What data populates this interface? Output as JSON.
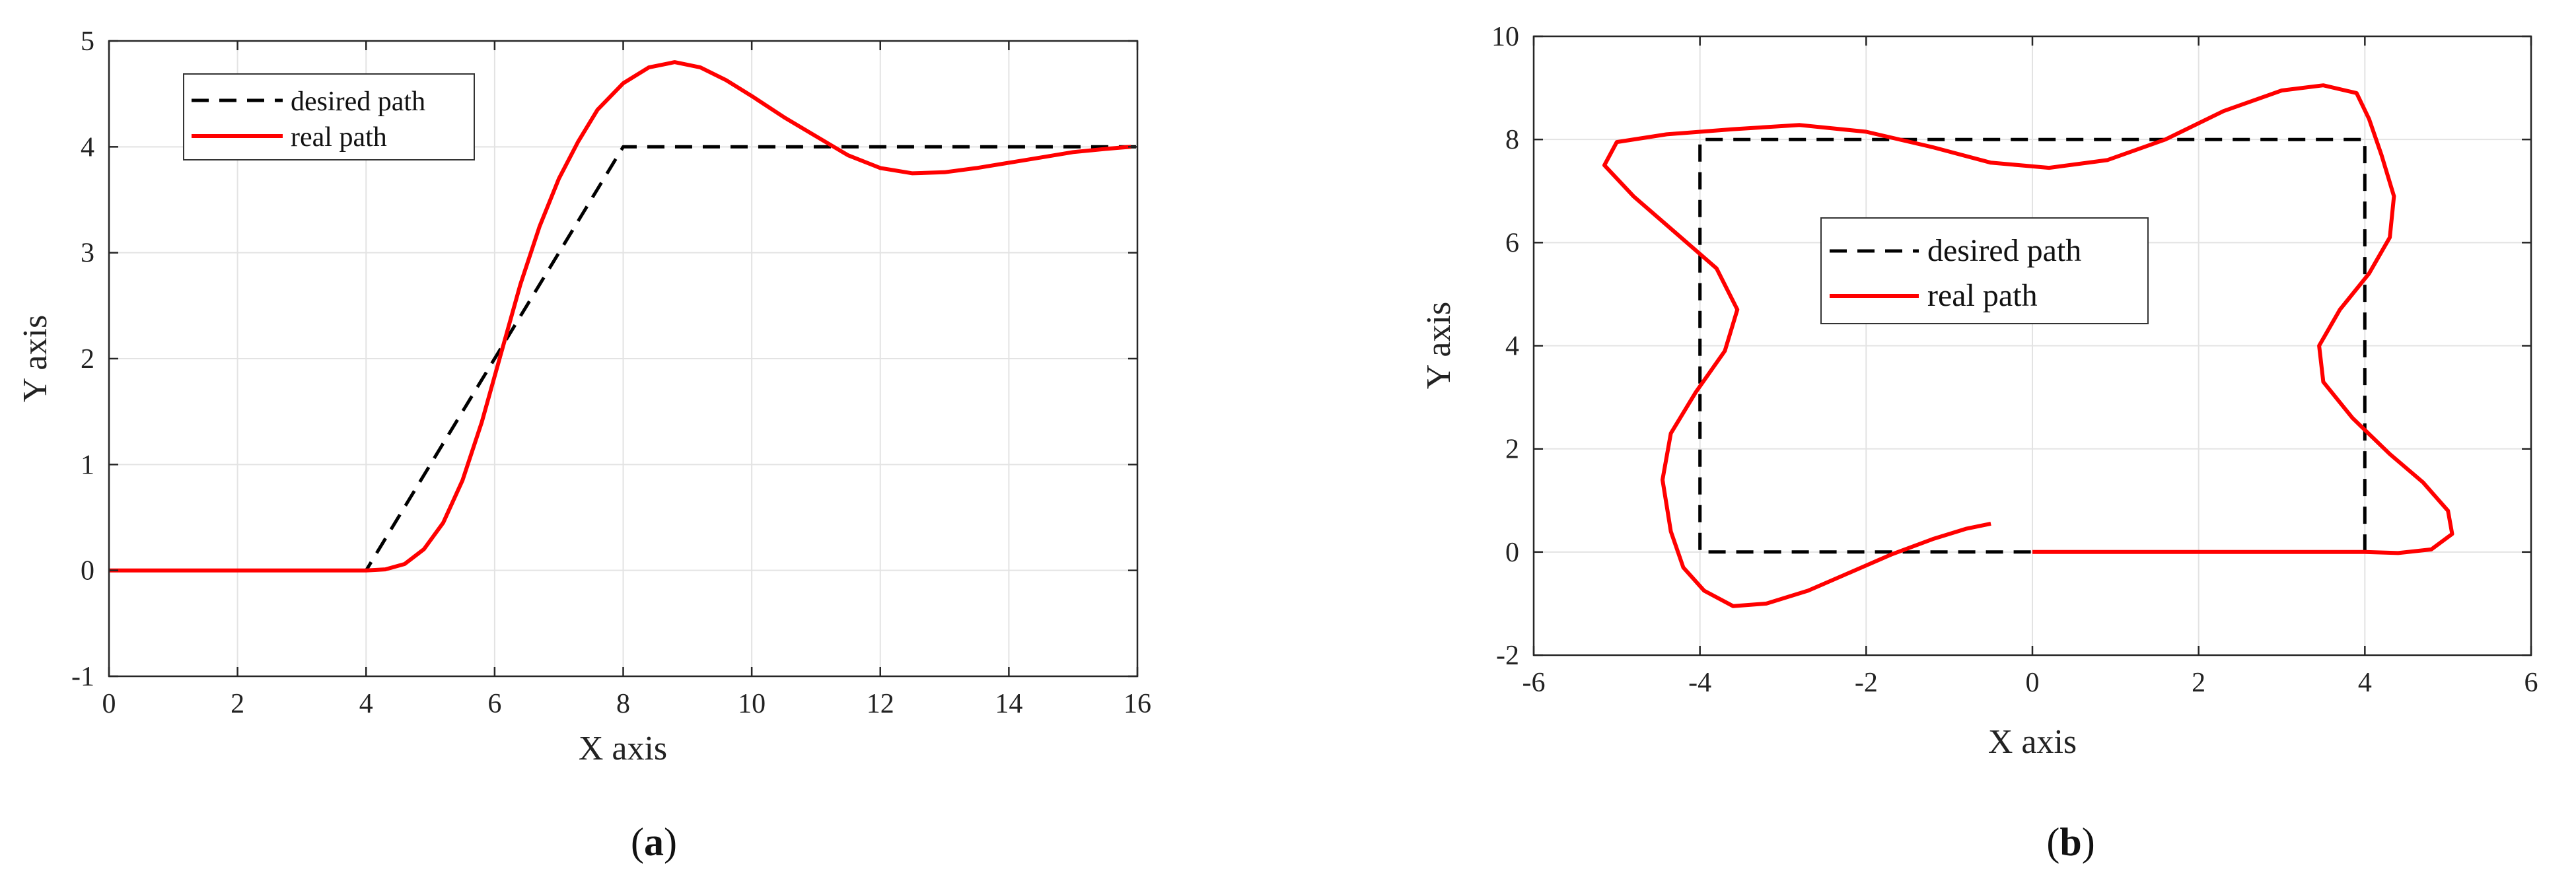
{
  "chart_data": [
    {
      "type": "line",
      "caption": "a",
      "xlabel": "X axis",
      "ylabel": "Y axis",
      "xlim": [
        0,
        16
      ],
      "ylim": [
        -1,
        5
      ],
      "xticks": [
        0,
        2,
        4,
        6,
        8,
        10,
        12,
        14,
        16
      ],
      "yticks": [
        -1,
        0,
        1,
        2,
        3,
        4,
        5
      ],
      "grid": true,
      "legend": "top-left",
      "series": [
        {
          "name": "desired path",
          "style": "dashed",
          "color": "#000000",
          "points": [
            [
              0,
              0
            ],
            [
              4,
              0
            ],
            [
              8,
              4
            ],
            [
              16,
              4
            ]
          ]
        },
        {
          "name": "real path",
          "style": "solid",
          "color": "#ff0000",
          "points": [
            [
              0,
              0
            ],
            [
              2,
              0
            ],
            [
              4,
              0
            ],
            [
              4.3,
              0.01
            ],
            [
              4.6,
              0.06
            ],
            [
              4.9,
              0.2
            ],
            [
              5.2,
              0.45
            ],
            [
              5.5,
              0.85
            ],
            [
              5.8,
              1.4
            ],
            [
              6.1,
              2.05
            ],
            [
              6.4,
              2.7
            ],
            [
              6.7,
              3.25
            ],
            [
              7.0,
              3.7
            ],
            [
              7.3,
              4.05
            ],
            [
              7.6,
              4.35
            ],
            [
              8.0,
              4.6
            ],
            [
              8.4,
              4.75
            ],
            [
              8.8,
              4.8
            ],
            [
              9.2,
              4.75
            ],
            [
              9.6,
              4.63
            ],
            [
              10.0,
              4.48
            ],
            [
              10.5,
              4.28
            ],
            [
              11.0,
              4.1
            ],
            [
              11.5,
              3.92
            ],
            [
              12.0,
              3.8
            ],
            [
              12.5,
              3.75
            ],
            [
              13.0,
              3.76
            ],
            [
              13.5,
              3.8
            ],
            [
              14.0,
              3.85
            ],
            [
              14.5,
              3.9
            ],
            [
              15.0,
              3.95
            ],
            [
              15.5,
              3.98
            ],
            [
              15.9,
              4.0
            ]
          ]
        }
      ]
    },
    {
      "type": "line",
      "caption": "b",
      "xlabel": "X axis",
      "ylabel": "Y axis",
      "xlim": [
        -6,
        6
      ],
      "ylim": [
        -2,
        10
      ],
      "xticks": [
        -6,
        -4,
        -2,
        0,
        2,
        4,
        6
      ],
      "yticks": [
        -2,
        0,
        2,
        4,
        6,
        8,
        10
      ],
      "grid": true,
      "legend": "center",
      "series": [
        {
          "name": "desired path",
          "style": "dashed",
          "color": "#000000",
          "points": [
            [
              0,
              0
            ],
            [
              4,
              0
            ],
            [
              4,
              8
            ],
            [
              -4,
              8
            ],
            [
              -4,
              0
            ],
            [
              0,
              0
            ]
          ]
        },
        {
          "name": "real path",
          "style": "solid",
          "color": "#ff0000",
          "points": [
            [
              0,
              0
            ],
            [
              1,
              0
            ],
            [
              2,
              0
            ],
            [
              3,
              0
            ],
            [
              3.6,
              0
            ],
            [
              4.0,
              0
            ],
            [
              4.4,
              -0.02
            ],
            [
              4.8,
              0.05
            ],
            [
              5.05,
              0.35
            ],
            [
              5.0,
              0.8
            ],
            [
              4.7,
              1.35
            ],
            [
              4.3,
              1.9
            ],
            [
              3.85,
              2.6
            ],
            [
              3.5,
              3.3
            ],
            [
              3.45,
              4.0
            ],
            [
              3.7,
              4.7
            ],
            [
              4.05,
              5.4
            ],
            [
              4.3,
              6.1
            ],
            [
              4.35,
              6.9
            ],
            [
              4.2,
              7.7
            ],
            [
              4.05,
              8.4
            ],
            [
              3.9,
              8.9
            ],
            [
              3.5,
              9.05
            ],
            [
              3.0,
              8.95
            ],
            [
              2.3,
              8.55
            ],
            [
              1.6,
              8.0
            ],
            [
              0.9,
              7.6
            ],
            [
              0.2,
              7.45
            ],
            [
              -0.5,
              7.55
            ],
            [
              -1.2,
              7.85
            ],
            [
              -2.0,
              8.15
            ],
            [
              -2.8,
              8.28
            ],
            [
              -3.6,
              8.2
            ],
            [
              -4.4,
              8.1
            ],
            [
              -5.0,
              7.95
            ],
            [
              -5.15,
              7.5
            ],
            [
              -4.8,
              6.9
            ],
            [
              -4.3,
              6.2
            ],
            [
              -3.8,
              5.5
            ],
            [
              -3.55,
              4.7
            ],
            [
              -3.7,
              3.9
            ],
            [
              -4.05,
              3.1
            ],
            [
              -4.35,
              2.3
            ],
            [
              -4.45,
              1.4
            ],
            [
              -4.35,
              0.4
            ],
            [
              -4.2,
              -0.3
            ],
            [
              -3.95,
              -0.75
            ],
            [
              -3.6,
              -1.05
            ],
            [
              -3.2,
              -1.0
            ],
            [
              -2.7,
              -0.75
            ],
            [
              -2.2,
              -0.4
            ],
            [
              -1.7,
              -0.05
            ],
            [
              -1.2,
              0.25
            ],
            [
              -0.8,
              0.45
            ],
            [
              -0.5,
              0.55
            ]
          ]
        }
      ]
    }
  ]
}
